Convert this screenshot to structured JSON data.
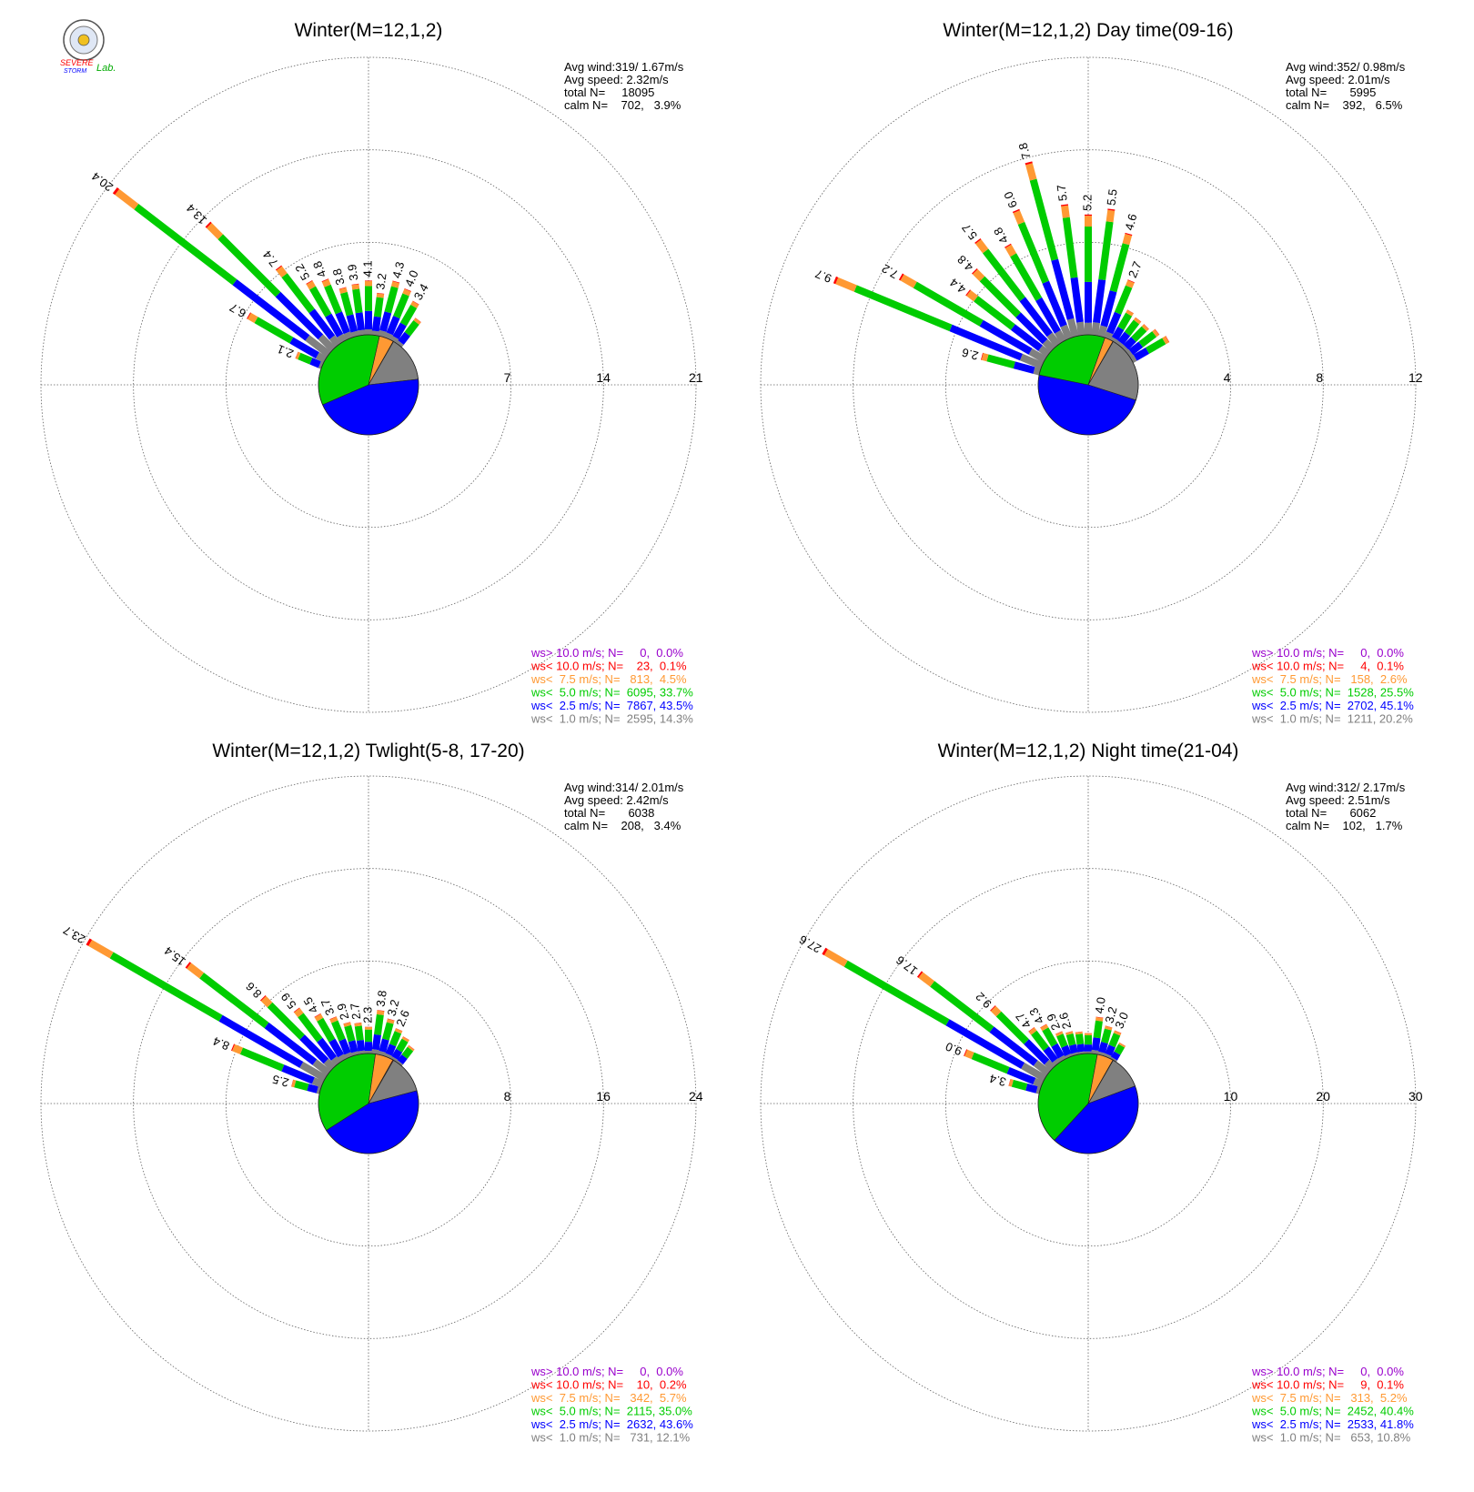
{
  "logo": {
    "top_text": "SEVERE",
    "bottom_text": "STORM",
    "lab_text": "Lab."
  },
  "colors": {
    "calm": "#808080",
    "lt1": "#808080",
    "lt2_5": "#0000ff",
    "lt5": "#00cc00",
    "lt7_5": "#ff9933",
    "lt10": "#ff0000",
    "gt10": "#9900cc",
    "grid": "#606060"
  },
  "chart_data": [
    {
      "type": "wind-rose",
      "title": "Winter(M=12,1,2)",
      "rings": [
        "7",
        "14",
        "21"
      ],
      "rmax": 21,
      "stats": [
        "Avg wind:319/ 1.67m/s",
        "Avg speed: 2.32m/s",
        "total N=     18095",
        "calm N=    702,   3.9%"
      ],
      "legend": [
        "ws> 10.0 m/s; N=     0,  0.0%",
        "ws< 10.0 m/s; N=    23,  0.1%",
        "ws<  7.5 m/s; N=   813,  4.5%",
        "ws<  5.0 m/s; N=  6095, 33.7%",
        "ws<  2.5 m/s; N=  7867, 43.5%",
        "ws<  1.0 m/s; N=  2595, 14.3%"
      ],
      "calm_pie": [
        14.3,
        43.5,
        33.7,
        4.5,
        0.1
      ],
      "directions_deg": [
        292.5,
        300,
        307.5,
        315,
        322.5,
        330,
        337.5,
        345,
        352.5,
        0,
        7.5,
        15,
        22.5,
        30,
        37.5
      ],
      "bar_totals": [
        "2.1",
        "6.7",
        "20.4",
        "13.4",
        "7.4",
        "5.2",
        "4.8",
        "3.8",
        "3.9",
        "4.1",
        "3.2",
        "4.3",
        "4.0",
        "3.4",
        null
      ],
      "bar_values": [
        2.1,
        6.7,
        20.4,
        13.4,
        7.4,
        5.2,
        4.8,
        3.8,
        3.9,
        4.1,
        3.2,
        4.3,
        4.0,
        3.4,
        2.4
      ]
    },
    {
      "type": "wind-rose",
      "title": "Winter(M=12,1,2) Day time(09-16)",
      "rings": [
        "4",
        "8",
        "12"
      ],
      "rmax": 12,
      "stats": [
        "Avg wind:352/ 0.98m/s",
        "Avg speed: 2.01m/s",
        "total N=       5995",
        "calm N=    392,   6.5%"
      ],
      "legend": [
        "ws> 10.0 m/s; N=     0,  0.0%",
        "ws< 10.0 m/s; N=     4,  0.1%",
        "ws<  7.5 m/s; N=   158,  2.6%",
        "ws<  5.0 m/s; N=  1528, 25.5%",
        "ws<  2.5 m/s; N=  2702, 45.1%",
        "ws<  1.0 m/s; N=  1211, 20.2%"
      ],
      "calm_pie": [
        20.2,
        45.1,
        25.5,
        2.6,
        0.1
      ],
      "directions_deg": [
        285,
        292.5,
        300,
        307.5,
        315,
        322.5,
        330,
        337.5,
        345,
        352.5,
        0,
        7.5,
        15,
        22.5,
        30,
        37.5,
        45,
        52.5,
        60
      ],
      "bar_totals": [
        "2.6",
        "9.7",
        "7.2",
        "4.4",
        "4.8",
        "5.7",
        "4.8",
        "6.0",
        "7.8",
        "5.7",
        "5.2",
        "5.5",
        "4.6",
        "2.7",
        null,
        null,
        null,
        null,
        null
      ],
      "bar_values": [
        2.6,
        9.7,
        7.2,
        4.4,
        4.8,
        5.7,
        4.8,
        6.0,
        7.8,
        5.7,
        5.2,
        5.5,
        4.6,
        2.7,
        1.5,
        1.4,
        1.4,
        1.6,
        1.8
      ]
    },
    {
      "type": "wind-rose",
      "title": "Winter(M=12,1,2) Twlight(5-8, 17-20)",
      "rings": [
        "8",
        "16",
        "24"
      ],
      "rmax": 24,
      "stats": [
        "Avg wind:314/ 2.01m/s",
        "Avg speed: 2.42m/s",
        "total N=       6038",
        "calm N=    208,   3.4%"
      ],
      "legend": [
        "ws> 10.0 m/s; N=     0,  0.0%",
        "ws< 10.0 m/s; N=    10,  0.2%",
        "ws<  7.5 m/s; N=   342,  5.7%",
        "ws<  5.0 m/s; N=  2115, 35.0%",
        "ws<  2.5 m/s; N=  2632, 43.6%",
        "ws<  1.0 m/s; N=   731, 12.1%"
      ],
      "calm_pie": [
        12.1,
        43.6,
        35.0,
        5.7,
        0.2
      ],
      "directions_deg": [
        285,
        292.5,
        300,
        307.5,
        315,
        322.5,
        330,
        337.5,
        345,
        352.5,
        0,
        7.5,
        15,
        22.5,
        30,
        37.5
      ],
      "bar_totals": [
        "2.5",
        "8.4",
        "23.7",
        "15.4",
        "8.6",
        "5.9",
        "4.5",
        "3.7",
        "2.9",
        "2.7",
        "2.3",
        "3.8",
        "3.2",
        "2.6",
        null,
        null
      ],
      "bar_values": [
        2.5,
        8.4,
        23.7,
        15.4,
        8.6,
        5.9,
        4.5,
        3.7,
        2.9,
        2.7,
        2.3,
        3.8,
        3.2,
        2.6,
        2.2,
        1.8
      ]
    },
    {
      "type": "wind-rose",
      "title": "Winter(M=12,1,2) Night time(21-04)",
      "rings": [
        "10",
        "20",
        "30"
      ],
      "rmax": 30,
      "stats": [
        "Avg wind:312/ 2.17m/s",
        "Avg speed: 2.51m/s",
        "total N=       6062",
        "calm N=    102,   1.7%"
      ],
      "legend": [
        "ws> 10.0 m/s; N=     0,  0.0%",
        "ws< 10.0 m/s; N=     9,  0.1%",
        "ws<  7.5 m/s; N=   313,  5.2%",
        "ws<  5.0 m/s; N=  2452, 40.4%",
        "ws<  2.5 m/s; N=  2533, 41.8%",
        "ws<  1.0 m/s; N=   653, 10.8%"
      ],
      "calm_pie": [
        10.8,
        41.8,
        40.4,
        5.2,
        0.1
      ],
      "directions_deg": [
        285,
        292.5,
        300,
        307.5,
        315,
        322.5,
        330,
        337.5,
        345,
        352.5,
        0,
        7.5,
        15,
        22.5,
        30
      ],
      "bar_totals": [
        "3.4",
        "9.0",
        "27.6",
        "17.6",
        "9.2",
        "4.7",
        "4.3",
        "2.9",
        "2.6",
        null,
        null,
        "4.0",
        "3.2",
        "3.0",
        null
      ],
      "bar_values": [
        3.4,
        9.0,
        27.6,
        17.6,
        9.2,
        4.7,
        4.3,
        2.9,
        2.6,
        2.4,
        2.2,
        4.0,
        3.2,
        3.0,
        2.0
      ]
    }
  ]
}
